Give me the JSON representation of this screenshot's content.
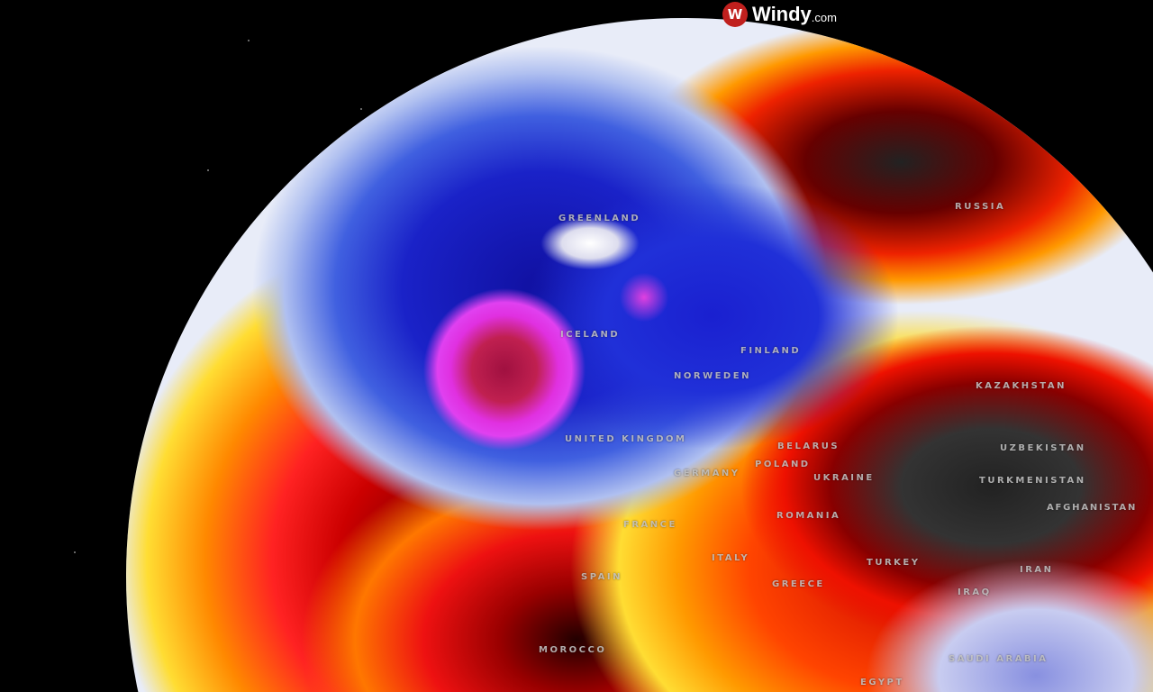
{
  "brand": {
    "logo_mark": "W",
    "name": "Windy",
    "suffix": ".com",
    "accent": "#c0201e"
  },
  "map": {
    "type": "globe temperature overlay",
    "colors": {
      "cold": "#1a22c8",
      "very_cold": "#e030e0",
      "warm": "#ffd21e",
      "hot": "#e01a0a",
      "extreme": "#2a2a2a",
      "neutral": "#e8ecf8"
    },
    "labels": [
      "GREENLAND",
      "ICELAND",
      "FINLAND",
      "NORWEDEN",
      "UNITED KINGDOM",
      "BELARUS",
      "POLAND",
      "GERMANY",
      "UKRAINE",
      "ROMANIA",
      "FRANCE",
      "SPAIN",
      "ITALY",
      "GREECE",
      "TURKEY",
      "IRAQ",
      "IRAN",
      "SAUDI ARABIA",
      "EGYPT",
      "MOROCCO",
      "RUSSIA",
      "KAZAKHSTAN",
      "UZBEKISTAN",
      "TURKMENISTAN",
      "AFGHANISTAN"
    ]
  }
}
